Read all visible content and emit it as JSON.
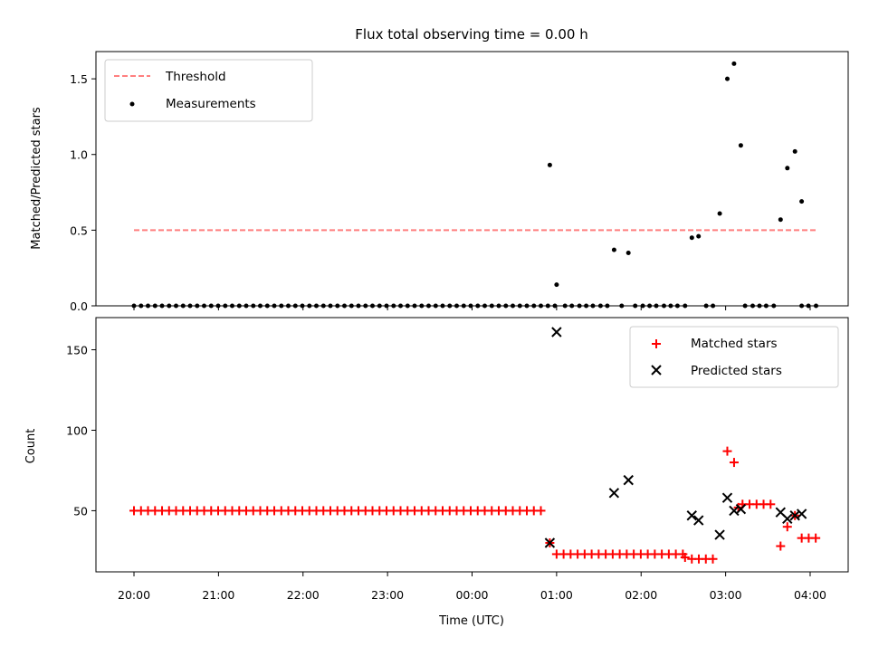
{
  "colors": {
    "threshold": "#ff7f7f",
    "measurement": "#000000",
    "matched": "#ff0000",
    "predicted": "#000000"
  },
  "chart_data": [
    {
      "type": "scatter",
      "title": "Flux total observing time = 0.00 h",
      "xlabel": "",
      "ylabel": "Matched/Predicted stars",
      "xlim": [
        -0.45,
        8.45
      ],
      "ylim": [
        0,
        1.68
      ],
      "yticks": [
        0.0,
        0.5,
        1.0,
        1.5
      ],
      "ytick_labels": [
        "0.0",
        "0.5",
        "1.0",
        "1.5"
      ],
      "legend": {
        "position": "top-left",
        "entries": [
          "Threshold",
          "Measurements"
        ]
      },
      "threshold": {
        "name": "Threshold",
        "value": 0.5,
        "x": [
          0.0,
          8.08
        ]
      },
      "measurements": {
        "name": "Measurements",
        "zero_x_start": 0.0,
        "zero_x_end": 4.98,
        "zero_x_step": 0.083,
        "zero_x_extra": [
          5.1,
          5.18,
          5.27,
          5.35,
          5.43,
          5.52,
          5.6,
          5.77,
          5.93,
          6.02,
          6.1,
          6.18,
          6.27,
          6.35,
          6.43,
          6.52,
          6.77,
          6.85,
          7.23,
          7.32,
          7.4,
          7.48,
          7.57,
          7.9,
          7.98,
          8.07
        ],
        "points": [
          [
            4.92,
            0.93
          ],
          [
            5.0,
            0.14
          ],
          [
            5.68,
            0.37
          ],
          [
            5.85,
            0.35
          ],
          [
            6.6,
            0.45
          ],
          [
            6.68,
            0.46
          ],
          [
            6.93,
            0.61
          ],
          [
            7.02,
            1.5
          ],
          [
            7.1,
            1.6
          ],
          [
            7.18,
            1.06
          ],
          [
            7.65,
            0.57
          ],
          [
            7.73,
            0.91
          ],
          [
            7.82,
            1.02
          ],
          [
            7.9,
            0.69
          ]
        ]
      }
    },
    {
      "type": "scatter",
      "title": "",
      "xlabel": "Time (UTC)",
      "ylabel": "Count",
      "xlim": [
        -0.45,
        8.45
      ],
      "ylim": [
        12,
        170
      ],
      "yticks": [
        50,
        100,
        150
      ],
      "ytick_labels": [
        "50",
        "100",
        "150"
      ],
      "xticks": [
        0,
        1,
        2,
        3,
        4,
        5,
        6,
        7,
        8
      ],
      "xtick_labels": [
        "20:00",
        "21:00",
        "22:00",
        "23:00",
        "00:00",
        "01:00",
        "02:00",
        "03:00",
        "04:00"
      ],
      "legend": {
        "position": "top-right",
        "entries": [
          "Matched stars",
          "Predicted stars"
        ]
      },
      "matched": {
        "name": "Matched stars",
        "runs": [
          {
            "from": 0.0,
            "to": 4.85,
            "step": 0.083,
            "y": 50
          },
          {
            "from": 5.0,
            "to": 6.52,
            "step": 0.083,
            "y": 23
          },
          {
            "from": 6.6,
            "to": 6.93,
            "step": 0.083,
            "y": 20
          },
          {
            "from": 7.2,
            "to": 7.57,
            "step": 0.083,
            "y": 54
          },
          {
            "from": 7.9,
            "to": 8.07,
            "step": 0.083,
            "y": 33
          }
        ],
        "points": [
          [
            4.92,
            30
          ],
          [
            6.52,
            21
          ],
          [
            7.02,
            87
          ],
          [
            7.1,
            80
          ],
          [
            7.15,
            52
          ],
          [
            7.65,
            28
          ],
          [
            7.73,
            40
          ],
          [
            7.82,
            47
          ]
        ]
      },
      "predicted": {
        "name": "Predicted stars",
        "points": [
          [
            4.92,
            30
          ],
          [
            5.0,
            161
          ],
          [
            5.68,
            61
          ],
          [
            5.85,
            69
          ],
          [
            6.6,
            47
          ],
          [
            6.68,
            44
          ],
          [
            6.93,
            35
          ],
          [
            7.02,
            58
          ],
          [
            7.1,
            50
          ],
          [
            7.18,
            51
          ],
          [
            7.65,
            49
          ],
          [
            7.73,
            45
          ],
          [
            7.82,
            47
          ],
          [
            7.9,
            48
          ]
        ]
      }
    }
  ]
}
